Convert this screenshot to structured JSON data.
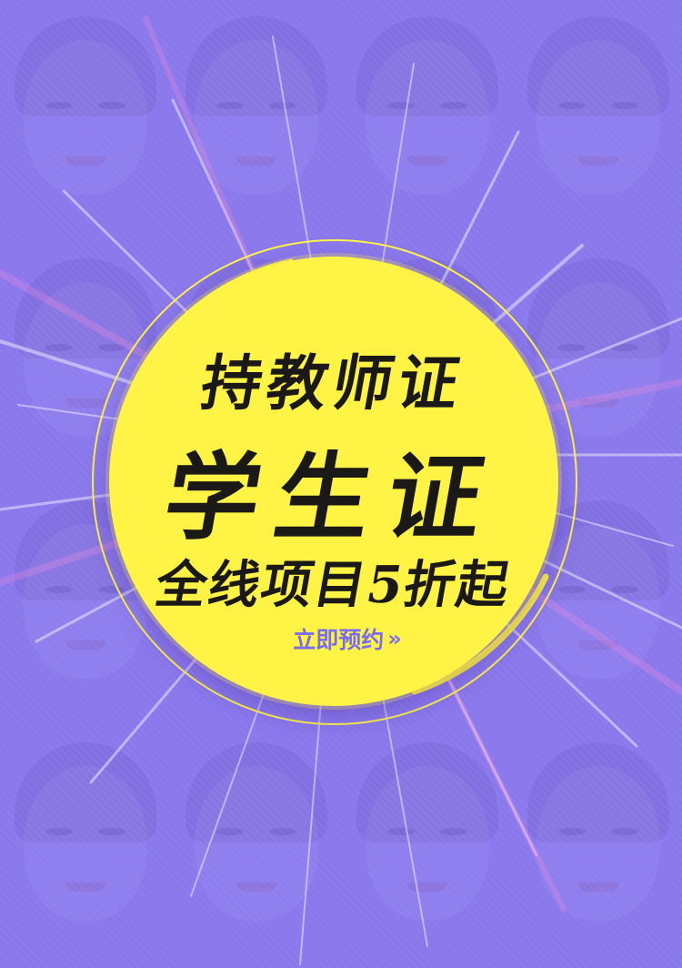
{
  "poster": {
    "headline_line1": "持教师证",
    "headline_line2": "学生证",
    "headline_line3": "全线项目5折起",
    "cta_label": "立即预约",
    "cta_arrow": "»",
    "colors": {
      "background": "#8a78ec",
      "badge": "#fff446",
      "text": "#1b1918",
      "cta": "#7a6cf0"
    }
  }
}
